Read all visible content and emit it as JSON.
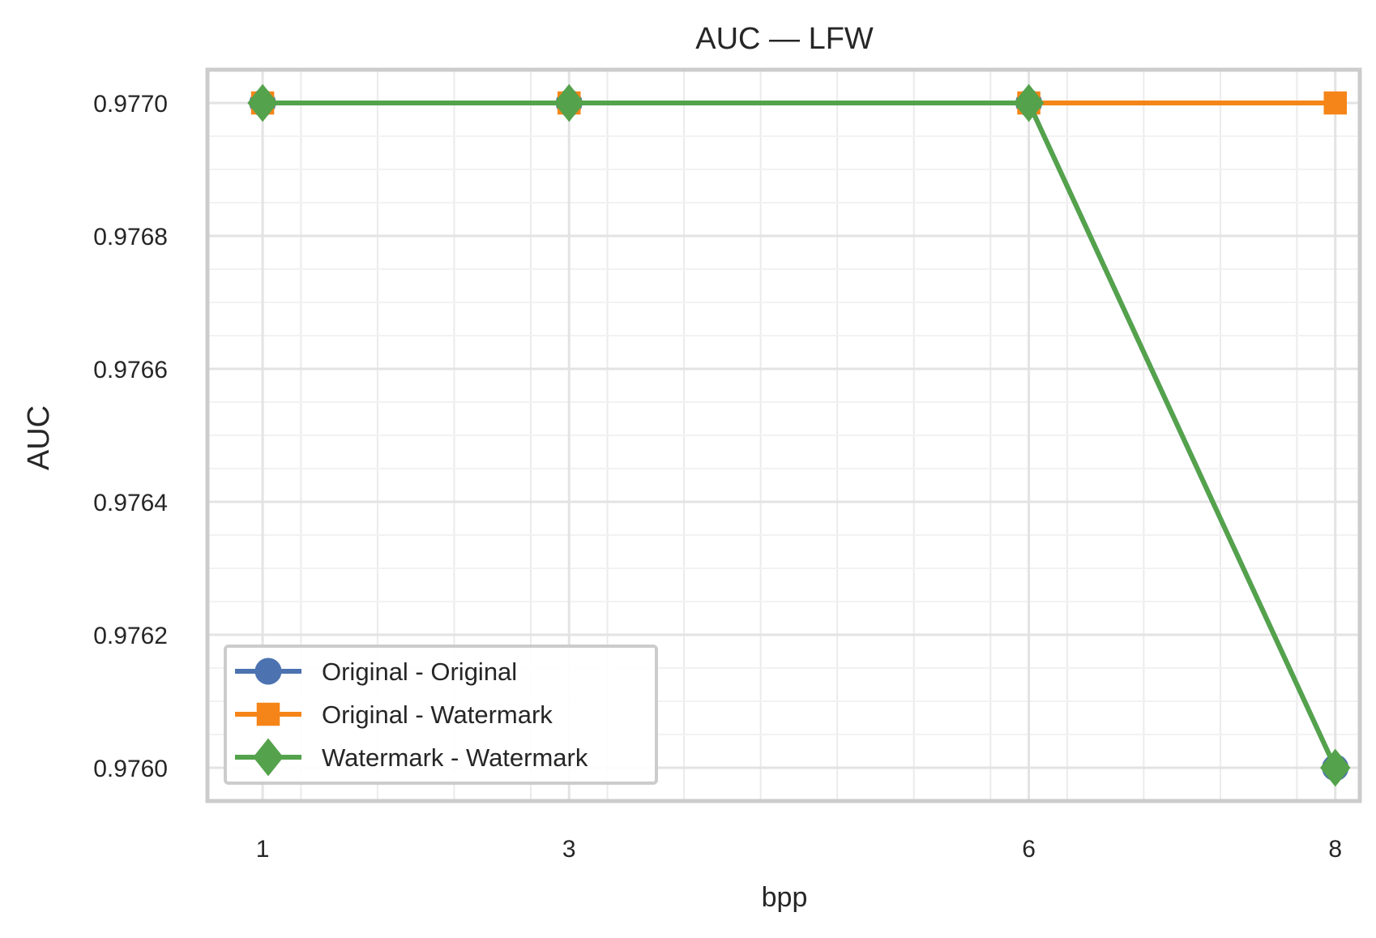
{
  "chart_data": {
    "type": "line",
    "title": "AUC — LFW",
    "xlabel": "bpp",
    "ylabel": "AUC",
    "x": [
      1,
      3,
      6,
      8
    ],
    "x_tick_labels": [
      "1",
      "3",
      "6",
      "8"
    ],
    "y_ticks": [
      0.976,
      0.9762,
      0.9764,
      0.9766,
      0.9768,
      0.977
    ],
    "y_tick_labels": [
      "0.9760",
      "0.9762",
      "0.9764",
      "0.9766",
      "0.9768",
      "0.9770"
    ],
    "xlim": [
      0.64,
      8.16
    ],
    "ylim": [
      0.97595,
      0.97705
    ],
    "grid": true,
    "minor_grid": true,
    "legend_position": "lower-left",
    "series": [
      {
        "name": "Original - Original",
        "values": [
          0.977,
          0.977,
          0.977,
          0.976
        ],
        "color": "#4c72b0",
        "marker": "circle"
      },
      {
        "name": "Original - Watermark",
        "values": [
          0.977,
          0.977,
          0.977,
          0.977
        ],
        "color": "#f58518",
        "marker": "square"
      },
      {
        "name": "Watermark - Watermark",
        "values": [
          0.977,
          0.977,
          0.977,
          0.976
        ],
        "color": "#54a24b",
        "marker": "diamond"
      }
    ]
  }
}
